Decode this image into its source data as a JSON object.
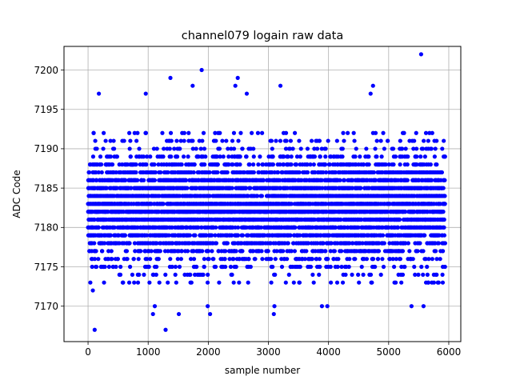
{
  "chart_data": {
    "type": "scatter",
    "title": "channel079 logain raw data",
    "xlabel": "sample number",
    "ylabel": "ADC Code",
    "xlim": [
      -400,
      6200
    ],
    "ylim": [
      7165.5,
      7203
    ],
    "xticks": [
      0,
      1000,
      2000,
      3000,
      4000,
      5000,
      6000
    ],
    "xtick_labels": [
      "0",
      "1000",
      "2000",
      "3000",
      "4000",
      "5000",
      "6000"
    ],
    "yticks": [
      7170,
      7175,
      7180,
      7185,
      7190,
      7195,
      7200
    ],
    "ytick_labels": [
      "7170",
      "7175",
      "7180",
      "7185",
      "7190",
      "7195",
      "7200"
    ],
    "grid": true,
    "marker_color": "#0000ff",
    "n_samples": 5940,
    "core_range": [
      7173,
      7192
    ],
    "notable_points": [
      {
        "x": 110,
        "y": 7167
      },
      {
        "x": 1290,
        "y": 7167
      },
      {
        "x": 5540,
        "y": 7202
      },
      {
        "x": 1890,
        "y": 7200
      },
      {
        "x": 2490,
        "y": 7199
      },
      {
        "x": 1370,
        "y": 7199
      },
      {
        "x": 180,
        "y": 7197
      },
      {
        "x": 960,
        "y": 7197
      },
      {
        "x": 1740,
        "y": 7198
      },
      {
        "x": 2450,
        "y": 7198
      },
      {
        "x": 2640,
        "y": 7197
      },
      {
        "x": 3200,
        "y": 7198
      },
      {
        "x": 4740,
        "y": 7198
      },
      {
        "x": 4700,
        "y": 7197
      },
      {
        "x": 1080,
        "y": 7169
      },
      {
        "x": 1510,
        "y": 7169
      },
      {
        "x": 2030,
        "y": 7169
      },
      {
        "x": 3090,
        "y": 7169
      },
      {
        "x": 1110,
        "y": 7170
      },
      {
        "x": 1990,
        "y": 7170
      },
      {
        "x": 3100,
        "y": 7170
      },
      {
        "x": 3890,
        "y": 7170
      },
      {
        "x": 3980,
        "y": 7170
      },
      {
        "x": 5380,
        "y": 7170
      },
      {
        "x": 5580,
        "y": 7170
      },
      {
        "x": 80,
        "y": 7172
      },
      {
        "x": 5900,
        "y": 7173
      }
    ]
  }
}
